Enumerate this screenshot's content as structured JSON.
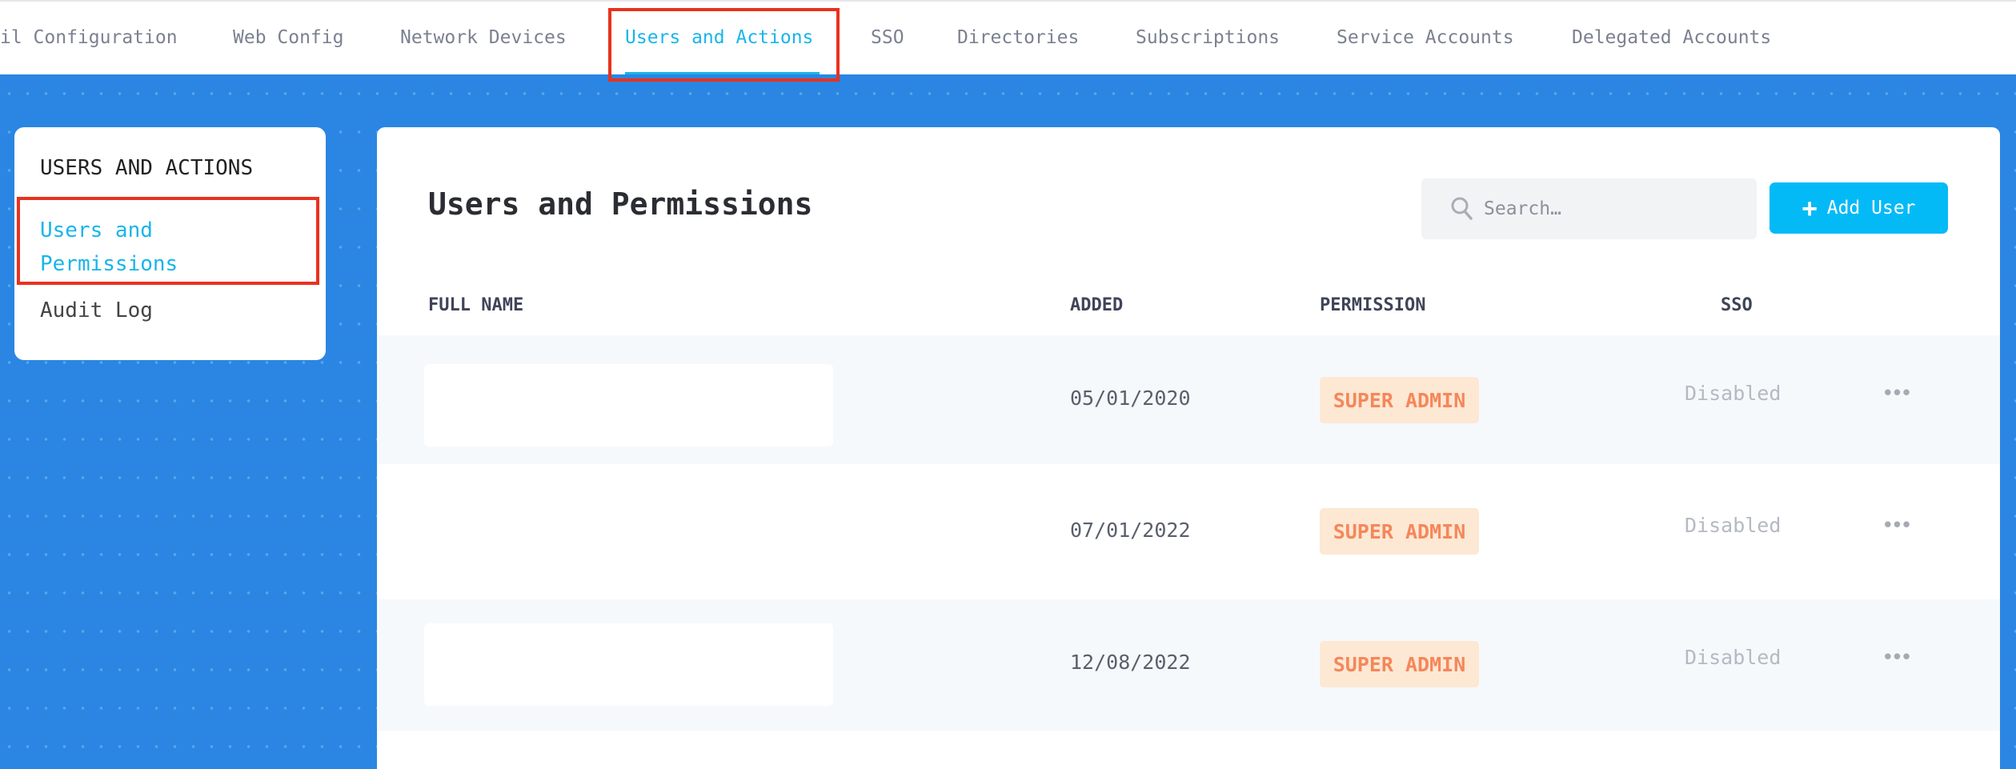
{
  "top_tabs": [
    {
      "label": "il Configuration"
    },
    {
      "label": "Web Config"
    },
    {
      "label": "Network Devices"
    },
    {
      "label": "Users and Actions",
      "active": true
    },
    {
      "label": "SSO"
    },
    {
      "label": "Directories"
    },
    {
      "label": "Subscriptions"
    },
    {
      "label": "Service Accounts"
    },
    {
      "label": "Delegated Accounts"
    }
  ],
  "sidebar": {
    "heading": "USERS AND ACTIONS",
    "items": [
      {
        "label": "Users and Permissions",
        "active": true
      },
      {
        "label": "Audit Log"
      }
    ]
  },
  "main": {
    "title": "Users and Permissions",
    "search_placeholder": "Search…",
    "add_user_label": "Add User",
    "columns": [
      "FULL NAME",
      "ADDED",
      "PERMISSION",
      "SSO"
    ],
    "rows": [
      {
        "added": "05/01/2020",
        "permission": "SUPER ADMIN",
        "sso": "Disabled"
      },
      {
        "added": "07/01/2022",
        "permission": "SUPER ADMIN",
        "sso": "Disabled"
      },
      {
        "added": "12/08/2022",
        "permission": "SUPER ADMIN",
        "sso": "Disabled"
      }
    ]
  },
  "colors": {
    "accent": "#19b5ea",
    "button": "#04baf6",
    "badge_text": "#f5875a",
    "badge_bg": "#fde8d4",
    "background": "#2a86e2",
    "highlight": "#e8321f"
  },
  "icons": {
    "search": "search-icon",
    "plus": "plus-icon",
    "more": "more-horizontal-icon"
  }
}
